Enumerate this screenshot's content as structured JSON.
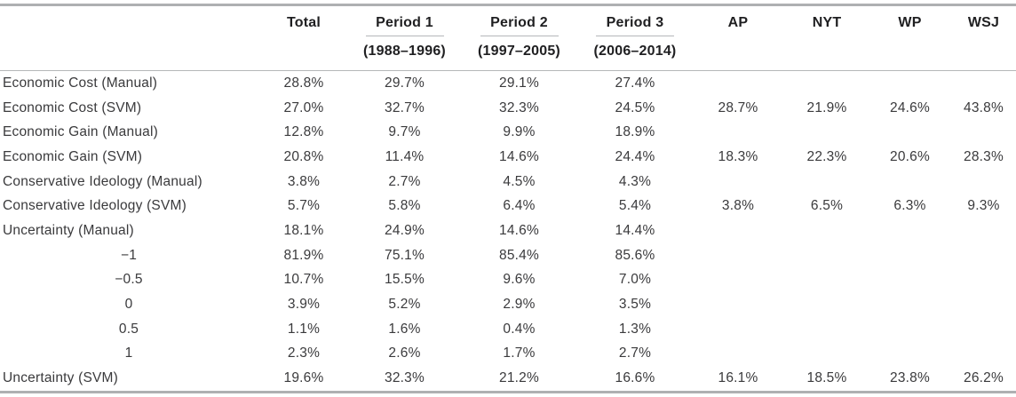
{
  "colors": {
    "rule_heavy": "#aeb0b2",
    "rule_light": "#b5b7b9",
    "header_text": "#1f1f21",
    "body_text": "#3a3a3c"
  },
  "chart_data": {
    "type": "table",
    "columns": [
      {
        "label": "",
        "sub": ""
      },
      {
        "label": "Total",
        "sub": ""
      },
      {
        "label": "Period 1",
        "sub": "(1988–1996)"
      },
      {
        "label": "Period 2",
        "sub": "(1997–2005)"
      },
      {
        "label": "Period 3",
        "sub": "(2006–2014)"
      },
      {
        "label": "AP",
        "sub": ""
      },
      {
        "label": "NYT",
        "sub": ""
      },
      {
        "label": "WP",
        "sub": ""
      },
      {
        "label": "WSJ",
        "sub": ""
      }
    ],
    "rows": [
      {
        "label": "Economic Cost (Manual)",
        "indent": false,
        "values": [
          "28.8%",
          "29.7%",
          "29.1%",
          "27.4%",
          "",
          "",
          "",
          ""
        ]
      },
      {
        "label": "Economic Cost (SVM)",
        "indent": false,
        "values": [
          "27.0%",
          "32.7%",
          "32.3%",
          "24.5%",
          "28.7%",
          "21.9%",
          "24.6%",
          "43.8%"
        ]
      },
      {
        "label": "Economic Gain (Manual)",
        "indent": false,
        "values": [
          "12.8%",
          "9.7%",
          "9.9%",
          "18.9%",
          "",
          "",
          "",
          ""
        ]
      },
      {
        "label": "Economic Gain (SVM)",
        "indent": false,
        "values": [
          "20.8%",
          "11.4%",
          "14.6%",
          "24.4%",
          "18.3%",
          "22.3%",
          "20.6%",
          "28.3%"
        ]
      },
      {
        "label": "Conservative Ideology (Manual)",
        "indent": false,
        "values": [
          "3.8%",
          "2.7%",
          "4.5%",
          "4.3%",
          "",
          "",
          "",
          ""
        ]
      },
      {
        "label": "Conservative Ideology (SVM)",
        "indent": false,
        "values": [
          "5.7%",
          "5.8%",
          "6.4%",
          "5.4%",
          "3.8%",
          "6.5%",
          "6.3%",
          "9.3%"
        ]
      },
      {
        "label": "Uncertainty (Manual)",
        "indent": false,
        "values": [
          "18.1%",
          "24.9%",
          "14.6%",
          "14.4%",
          "",
          "",
          "",
          ""
        ]
      },
      {
        "label": "−1",
        "indent": true,
        "values": [
          "81.9%",
          "75.1%",
          "85.4%",
          "85.6%",
          "",
          "",
          "",
          ""
        ]
      },
      {
        "label": "−0.5",
        "indent": true,
        "values": [
          "10.7%",
          "15.5%",
          "9.6%",
          "7.0%",
          "",
          "",
          "",
          ""
        ]
      },
      {
        "label": "0",
        "indent": true,
        "values": [
          "3.9%",
          "5.2%",
          "2.9%",
          "3.5%",
          "",
          "",
          "",
          ""
        ]
      },
      {
        "label": "0.5",
        "indent": true,
        "values": [
          "1.1%",
          "1.6%",
          "0.4%",
          "1.3%",
          "",
          "",
          "",
          ""
        ]
      },
      {
        "label": "1",
        "indent": true,
        "values": [
          "2.3%",
          "2.6%",
          "1.7%",
          "2.7%",
          "",
          "",
          "",
          ""
        ]
      },
      {
        "label": "Uncertainty (SVM)",
        "indent": false,
        "values": [
          "19.6%",
          "32.3%",
          "21.2%",
          "16.6%",
          "16.1%",
          "18.5%",
          "23.8%",
          "26.2%"
        ]
      }
    ]
  }
}
